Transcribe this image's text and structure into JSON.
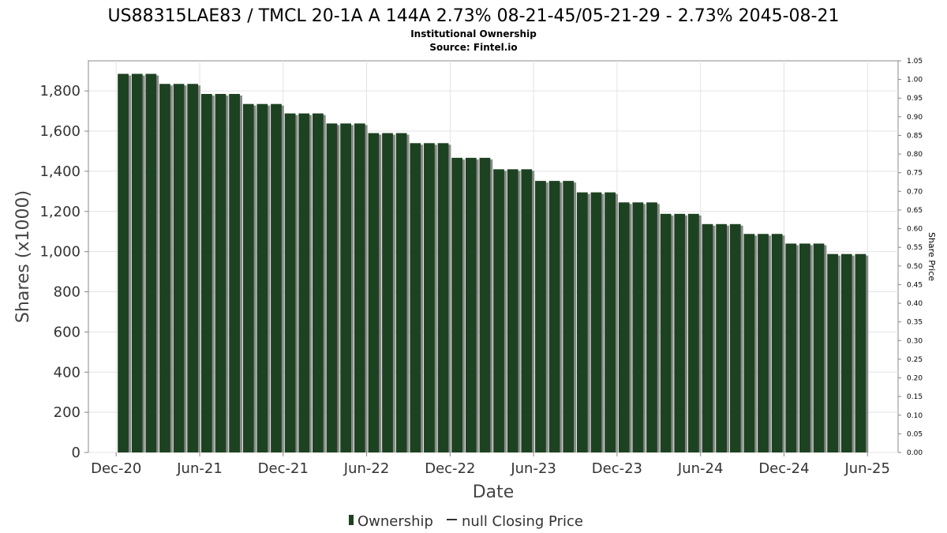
{
  "chart_data": {
    "type": "bar",
    "title": "US88315LAE83 / TMCL 20-1A A 144A 2.73% 08-21-45/05-21-29 - 2.73% 2045-08-21",
    "subtitle_lines": [
      "Institutional Ownership",
      "Source: Fintel.io"
    ],
    "xlabel": "Date",
    "ylabel": "Shares (x1000)",
    "y2label": "Share Price",
    "ylim": [
      0,
      1950
    ],
    "y2lim": [
      0,
      1.05
    ],
    "yticks": [
      "0",
      "200",
      "400",
      "600",
      "800",
      "1,000",
      "1,200",
      "1,400",
      "1,600",
      "1,800"
    ],
    "ytick_values": [
      0,
      200,
      400,
      600,
      800,
      1000,
      1200,
      1400,
      1600,
      1800
    ],
    "y2ticks": [
      "0.00",
      "0.05",
      "0.10",
      "0.15",
      "0.20",
      "0.25",
      "0.30",
      "0.35",
      "0.40",
      "0.45",
      "0.50",
      "0.55",
      "0.60",
      "0.65",
      "0.70",
      "0.75",
      "0.80",
      "0.85",
      "0.90",
      "0.95",
      "1.00",
      "1.05"
    ],
    "y2tick_values": [
      0,
      0.05,
      0.1,
      0.15,
      0.2,
      0.25,
      0.3,
      0.35,
      0.4,
      0.45,
      0.5,
      0.55,
      0.6,
      0.65,
      0.7,
      0.75,
      0.8,
      0.85,
      0.9,
      0.95,
      1.0,
      1.05
    ],
    "xticks": [
      "Dec-20",
      "Jun-21",
      "Dec-21",
      "Jun-22",
      "Dec-22",
      "Jun-23",
      "Dec-23",
      "Jun-24",
      "Dec-24",
      "Jun-25"
    ],
    "xtick_months": [
      0,
      6,
      12,
      18,
      24,
      30,
      36,
      42,
      48,
      54
    ],
    "xrange_months": [
      -2,
      56.2
    ],
    "bar_start_month": 0.5,
    "series": [
      {
        "name": "Ownership",
        "color": "#1d4221",
        "values": [
          1885,
          1885,
          1885,
          1835,
          1835,
          1835,
          1785,
          1785,
          1785,
          1735,
          1735,
          1735,
          1688,
          1688,
          1688,
          1638,
          1638,
          1638,
          1590,
          1590,
          1590,
          1540,
          1540,
          1540,
          1467,
          1467,
          1467,
          1410,
          1410,
          1410,
          1352,
          1352,
          1352,
          1295,
          1295,
          1295,
          1245,
          1245,
          1245,
          1188,
          1188,
          1188,
          1137,
          1137,
          1137,
          1088,
          1088,
          1088,
          1040,
          1040,
          1040,
          988,
          988,
          988
        ]
      },
      {
        "name": "null Closing Price",
        "color": "#333333",
        "values": []
      }
    ],
    "grid": true,
    "legend_position": "bottom"
  }
}
